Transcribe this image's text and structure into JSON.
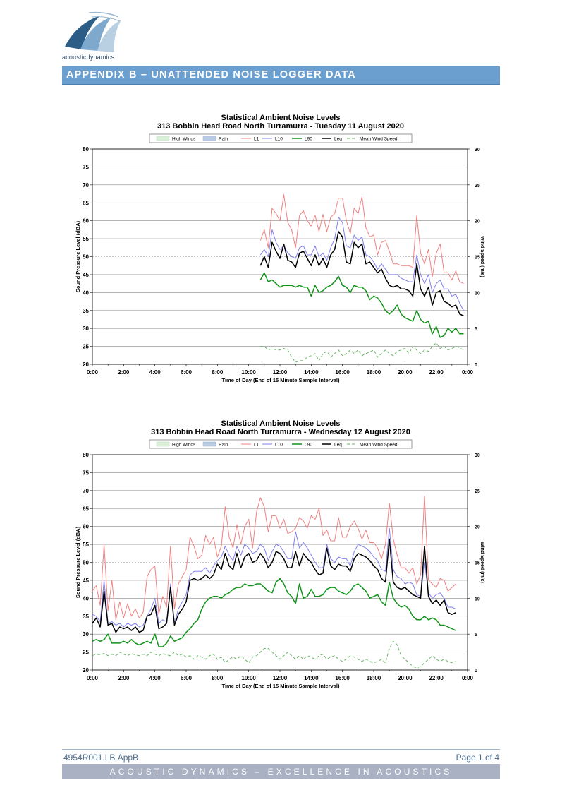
{
  "header": {
    "logo_text": "acousticdynamics",
    "banner_title": "APPENDIX B – UNATTENDED NOISE LOGGER DATA"
  },
  "footer": {
    "doc_ref": "4954R001.LB.AppB",
    "page": "Page 1 of 4",
    "tagline": "ACOUSTIC DYNAMICS – EXCELLENCE IN ACOUSTICS"
  },
  "colors": {
    "banner": "#6a9fcf",
    "L1": "#f08080",
    "L10": "#8080f0",
    "L90": "#11931a",
    "Leq": "#000000",
    "wind": "#66b266",
    "high_winds": "#d9f0d9",
    "rain": "#b8cce4"
  },
  "chart_data": [
    {
      "type": "line",
      "title": "Statistical Ambient Noise Levels",
      "subtitle": "313 Bobbin Head Road North Turramurra - Tuesday 11 August 2020",
      "xlabel": "Time of Day (End of 15 Minute  Sample Interval)",
      "ylabel": "Sound Pressure Level (dBA)",
      "y2label": "Wind Speed (m/s)",
      "ylim": [
        20,
        80
      ],
      "y2lim": [
        0,
        30
      ],
      "xlim": [
        0,
        24
      ],
      "yticks": [
        "20",
        "25",
        "30",
        "35",
        "40",
        "45",
        "50",
        "55",
        "60",
        "65",
        "70",
        "75",
        "80"
      ],
      "y2ticks": [
        "0",
        "5",
        "10",
        "15",
        "20",
        "25",
        "30"
      ],
      "xticks": [
        "0:00",
        "2:00",
        "4:00",
        "6:00",
        "8:00",
        "10:00",
        "12:00",
        "14:00",
        "16:00",
        "18:00",
        "20:00",
        "22:00",
        "0:00"
      ],
      "legend": [
        "High Winds",
        "Rain",
        "L1",
        "L10",
        "L90",
        "Leq",
        "Mean Wind Speed"
      ],
      "x_start_hours": 10.75,
      "x_step_hours": 0.25,
      "series": [
        {
          "name": "L1",
          "values": [
            54.5,
            57.5,
            52.5,
            63.5,
            62.0,
            60.0,
            67.3,
            59.5,
            57.5,
            52.5,
            61.5,
            62.8,
            60.0,
            58.5,
            61.5,
            57.0,
            61.8,
            57.0,
            61.0,
            62.0,
            66.3,
            66.3,
            60.0,
            56.5,
            63.5,
            62.0,
            66.7,
            58.0,
            55.5,
            56.0,
            50.5,
            54.0,
            54.5,
            51.5,
            48.0,
            48.0,
            47.5,
            47.5,
            47.5,
            47.0,
            61.5,
            51.0,
            48.0,
            52.0,
            44.5,
            51.0,
            53.5,
            45.5,
            45.5,
            43.5,
            46.0,
            43.0,
            42.5
          ]
        },
        {
          "name": "L10",
          "values": [
            50.5,
            52.0,
            50.0,
            57.5,
            54.0,
            52.0,
            53.0,
            51.0,
            50.0,
            49.5,
            52.5,
            53.0,
            50.5,
            50.5,
            53.0,
            50.0,
            51.0,
            49.0,
            52.5,
            55.0,
            61.0,
            59.5,
            53.0,
            52.5,
            56.0,
            54.5,
            55.5,
            50.5,
            50.0,
            48.5,
            46.5,
            48.0,
            46.5,
            45.0,
            45.0,
            45.0,
            44.0,
            43.5,
            43.0,
            43.0,
            50.5,
            45.0,
            42.5,
            45.0,
            40.0,
            42.5,
            43.5,
            41.0,
            41.0,
            39.0,
            39.5,
            37.0,
            35.0
          ]
        },
        {
          "name": "L90",
          "values": [
            43.5,
            45.5,
            43.0,
            43.5,
            42.5,
            41.5,
            42.0,
            42.0,
            42.0,
            41.5,
            42.0,
            41.5,
            41.5,
            39.0,
            42.0,
            40.0,
            40.5,
            41.5,
            42.0,
            43.0,
            44.5,
            42.0,
            41.5,
            40.0,
            42.0,
            41.5,
            41.5,
            40.5,
            38.0,
            39.0,
            38.5,
            37.0,
            35.0,
            34.0,
            35.0,
            36.5,
            34.0,
            33.0,
            32.5,
            32.0,
            35.0,
            32.5,
            31.5,
            32.0,
            28.5,
            30.5,
            27.5,
            28.0,
            30.0,
            29.0,
            30.0,
            28.5,
            28.5
          ]
        },
        {
          "name": "Leq",
          "values": [
            47.5,
            50.0,
            47.0,
            54.0,
            51.5,
            49.5,
            53.5,
            49.0,
            48.5,
            47.0,
            51.0,
            51.5,
            49.5,
            47.5,
            50.5,
            47.5,
            49.5,
            47.0,
            50.5,
            52.0,
            57.0,
            55.5,
            48.5,
            48.0,
            54.0,
            52.5,
            53.5,
            48.0,
            48.5,
            47.0,
            45.5,
            46.5,
            44.0,
            42.0,
            41.5,
            42.0,
            41.0,
            41.0,
            40.5,
            39.0,
            48.0,
            41.0,
            39.0,
            41.5,
            36.5,
            40.0,
            40.5,
            37.5,
            37.0,
            36.0,
            36.5,
            34.0,
            33.5
          ]
        },
        {
          "name": "Mean Wind Speed",
          "axis": "y2",
          "values": [
            2.5,
            2.5,
            2.0,
            2.2,
            2.0,
            2.0,
            2.2,
            2.0,
            1.0,
            0.3,
            0.5,
            0.5,
            1.0,
            1.2,
            1.5,
            0.5,
            1.5,
            1.8,
            1.0,
            1.5,
            2.0,
            1.2,
            1.5,
            2.0,
            1.5,
            2.0,
            1.2,
            1.5,
            1.7,
            2.0,
            1.0,
            1.5,
            2.0,
            1.5,
            1.2,
            1.8,
            2.0,
            2.2,
            1.5,
            2.5,
            2.0,
            1.5,
            2.0,
            1.8,
            2.5,
            3.0,
            2.2,
            2.5,
            2.0,
            2.2,
            2.5,
            2.3,
            2.0
          ]
        }
      ]
    },
    {
      "type": "line",
      "title": "Statistical Ambient Noise Levels",
      "subtitle": "313 Bobbin Head Road North Turramurra - Wednesday 12 August 2020",
      "xlabel": "Time of Day (End of 15 Minute  Sample Interval)",
      "ylabel": "Sound Pressure Level (dBA)",
      "y2label": "Wind Speed (m/s)",
      "ylim": [
        20,
        80
      ],
      "y2lim": [
        0,
        30
      ],
      "xlim": [
        0,
        24
      ],
      "yticks": [
        "20",
        "25",
        "30",
        "35",
        "40",
        "45",
        "50",
        "55",
        "60",
        "65",
        "70",
        "75",
        "80"
      ],
      "y2ticks": [
        "0",
        "5",
        "10",
        "15",
        "20",
        "25",
        "30"
      ],
      "xticks": [
        "0:00",
        "2:00",
        "4:00",
        "6:00",
        "8:00",
        "10:00",
        "12:00",
        "14:00",
        "16:00",
        "18:00",
        "20:00",
        "22:00",
        "0:00"
      ],
      "legend": [
        "High Winds",
        "Rain",
        "L1",
        "L10",
        "L90",
        "Leq",
        "Mean Wind Speed"
      ],
      "x_start_hours": 0.0,
      "x_step_hours": 0.25,
      "series": [
        {
          "name": "L1",
          "values": [
            42.0,
            43.5,
            38.0,
            55.0,
            36.5,
            45.0,
            34.0,
            39.0,
            34.5,
            38.5,
            35.0,
            37.0,
            34.5,
            36.0,
            46.0,
            48.0,
            49.0,
            35.5,
            40.5,
            37.5,
            54.5,
            37.0,
            44.0,
            46.0,
            48.0,
            57.0,
            54.5,
            51.0,
            52.0,
            57.5,
            55.0,
            57.0,
            51.5,
            54.5,
            65.5,
            57.0,
            54.0,
            60.5,
            55.0,
            60.0,
            62.0,
            54.0,
            64.0,
            68.0,
            65.5,
            58.5,
            63.0,
            63.0,
            59.5,
            62.0,
            58.0,
            58.5,
            59.5,
            62.5,
            61.5,
            59.5,
            63.0,
            62.0,
            65.0,
            57.5,
            59.0,
            56.0,
            56.0,
            62.5,
            57.0,
            57.0,
            60.0,
            61.5,
            59.5,
            56.5,
            59.0,
            55.5,
            55.5,
            54.0,
            51.0,
            55.0,
            66.5,
            56.5,
            52.0,
            48.5,
            48.5,
            47.0,
            48.5,
            44.0,
            46.5,
            68.5,
            45.0,
            44.0,
            43.0,
            45.5,
            45.0,
            42.0,
            43.0,
            44.0
          ]
        },
        {
          "name": "L10",
          "values": [
            35.5,
            35.0,
            33.5,
            45.0,
            33.0,
            33.5,
            32.5,
            33.0,
            32.0,
            33.0,
            32.5,
            33.0,
            32.0,
            32.5,
            35.0,
            37.0,
            40.0,
            33.0,
            34.0,
            33.5,
            44.0,
            33.0,
            37.0,
            39.0,
            41.0,
            46.5,
            47.5,
            47.5,
            47.5,
            48.5,
            47.0,
            49.0,
            50.5,
            51.5,
            54.5,
            52.0,
            50.5,
            54.5,
            52.0,
            55.0,
            54.0,
            52.5,
            53.0,
            55.0,
            54.0,
            50.5,
            53.0,
            55.0,
            54.5,
            53.0,
            51.0,
            51.0,
            58.5,
            54.0,
            55.5,
            54.0,
            52.0,
            50.0,
            48.5,
            48.5,
            55.0,
            51.0,
            50.0,
            51.5,
            51.0,
            51.0,
            49.0,
            53.0,
            55.0,
            54.5,
            54.0,
            53.0,
            51.5,
            50.5,
            48.0,
            47.5,
            59.5,
            48.0,
            46.0,
            45.5,
            44.0,
            44.5,
            44.0,
            41.0,
            40.5,
            50.0,
            41.5,
            40.0,
            41.0,
            41.5,
            40.0,
            37.5,
            37.5,
            37.0
          ]
        },
        {
          "name": "L90",
          "values": [
            28.0,
            28.5,
            28.0,
            28.5,
            30.0,
            27.5,
            27.5,
            27.5,
            28.0,
            27.5,
            28.5,
            27.5,
            27.0,
            27.5,
            28.0,
            27.5,
            30.0,
            26.5,
            26.5,
            27.5,
            29.5,
            28.0,
            28.5,
            29.0,
            30.5,
            31.5,
            33.0,
            34.0,
            37.0,
            39.0,
            40.0,
            40.5,
            40.5,
            40.0,
            41.0,
            41.5,
            42.5,
            43.0,
            43.0,
            44.0,
            43.5,
            43.5,
            44.0,
            44.0,
            43.0,
            42.0,
            41.5,
            44.5,
            45.5,
            44.0,
            41.5,
            40.5,
            38.5,
            44.0,
            40.0,
            40.5,
            42.5,
            40.5,
            40.5,
            41.0,
            42.5,
            43.0,
            43.0,
            42.0,
            41.5,
            41.0,
            42.0,
            43.5,
            44.0,
            43.0,
            42.0,
            40.0,
            40.5,
            41.0,
            39.0,
            38.0,
            44.5,
            40.0,
            38.5,
            37.5,
            38.0,
            37.0,
            35.0,
            34.0,
            34.0,
            35.0,
            34.0,
            34.5,
            34.0,
            32.5,
            32.5,
            32.0,
            31.5,
            31.0
          ]
        },
        {
          "name": "Leq",
          "values": [
            33.0,
            34.5,
            32.0,
            42.0,
            32.5,
            33.0,
            30.5,
            32.0,
            31.5,
            32.0,
            31.0,
            32.0,
            30.5,
            31.0,
            35.0,
            35.5,
            38.0,
            31.5,
            32.0,
            33.0,
            43.0,
            32.5,
            35.5,
            37.0,
            39.0,
            45.0,
            45.5,
            45.0,
            45.5,
            46.5,
            45.5,
            46.5,
            49.5,
            48.0,
            52.5,
            49.0,
            48.0,
            52.5,
            48.5,
            51.5,
            52.5,
            50.0,
            50.5,
            52.5,
            51.0,
            48.5,
            50.0,
            53.0,
            52.5,
            51.0,
            48.5,
            48.5,
            53.0,
            49.0,
            52.5,
            51.0,
            50.0,
            48.0,
            46.5,
            47.0,
            54.0,
            49.0,
            48.0,
            49.5,
            49.0,
            49.0,
            47.5,
            51.0,
            52.5,
            52.0,
            51.5,
            50.5,
            49.0,
            48.0,
            45.5,
            44.5,
            56.5,
            44.5,
            43.0,
            42.5,
            43.0,
            42.0,
            41.0,
            40.5,
            40.0,
            54.5,
            40.5,
            38.5,
            39.5,
            38.0,
            39.5,
            36.0,
            35.5,
            36.0
          ]
        },
        {
          "name": "Mean Wind Speed",
          "axis": "y2",
          "values": [
            2.0,
            2.2,
            2.1,
            2.3,
            2.0,
            2.2,
            2.0,
            2.5,
            2.2,
            2.0,
            2.3,
            2.1,
            2.0,
            2.2,
            2.0,
            2.5,
            2.2,
            2.0,
            2.3,
            2.1,
            2.0,
            2.5,
            2.0,
            2.2,
            1.8,
            2.0,
            1.5,
            2.0,
            1.8,
            1.5,
            2.0,
            2.2,
            1.5,
            1.8,
            1.0,
            1.5,
            1.8,
            1.5,
            2.0,
            1.5,
            1.0,
            1.8,
            2.0,
            2.5,
            3.0,
            3.0,
            2.5,
            2.0,
            1.5,
            2.0,
            2.5,
            2.0,
            1.5,
            2.0,
            1.5,
            2.0,
            1.8,
            1.5,
            2.0,
            2.2,
            1.5,
            1.8,
            2.0,
            1.5,
            1.2,
            1.5,
            2.0,
            1.8,
            1.5,
            1.2,
            1.5,
            1.2,
            1.0,
            1.2,
            1.5,
            1.0,
            3.0,
            4.0,
            3.5,
            2.0,
            1.5,
            1.0,
            0.5,
            0.3,
            0.5,
            1.0,
            1.5,
            2.0,
            1.5,
            1.2,
            1.5,
            1.2,
            1.0,
            1.2
          ]
        }
      ]
    }
  ]
}
